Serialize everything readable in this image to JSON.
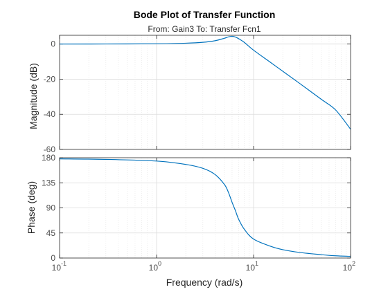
{
  "chart_data": {
    "type": "line",
    "title": "Bode Plot of Transfer Function",
    "subtitle": "From: Gain3  To: Transfer Fcn1",
    "xlabel": "Frequency  (rad/s)",
    "xscale": "log",
    "xlim": [
      0.1,
      100
    ],
    "x_ticks": [
      {
        "base": "10",
        "exp": "-1"
      },
      {
        "base": "10",
        "exp": "0"
      },
      {
        "base": "10",
        "exp": "1"
      },
      {
        "base": "10",
        "exp": "2"
      }
    ],
    "grid": true,
    "series_color": "#0072BD",
    "panels": [
      {
        "name": "magnitude",
        "ylabel": "Magnitude (dB)",
        "ylim": [
          -60,
          5
        ],
        "y_ticks": [
          0,
          -20,
          -40,
          -60
        ],
        "x": [
          0.1,
          0.3,
          1,
          2,
          3,
          4,
          5,
          5.5,
          6,
          6.5,
          7,
          8,
          10,
          15,
          20,
          30,
          50,
          70,
          100
        ],
        "y": [
          0,
          0.05,
          0.15,
          0.5,
          1.0,
          1.9,
          3.3,
          4.1,
          4.4,
          4.0,
          3.1,
          1.0,
          -3.5,
          -10.5,
          -15.5,
          -22.5,
          -31.5,
          -37.5,
          -48.5
        ]
      },
      {
        "name": "phase",
        "ylabel": "Phase (deg)",
        "ylim": [
          0,
          180
        ],
        "y_ticks": [
          180,
          135,
          90,
          45,
          0
        ],
        "x": [
          0.1,
          0.3,
          1,
          2,
          3,
          4,
          5,
          5.5,
          6,
          6.5,
          7,
          8,
          10,
          15,
          20,
          30,
          50,
          70,
          100
        ],
        "y": [
          178,
          177,
          174,
          168,
          161,
          150,
          132,
          118,
          100,
          85,
          70,
          52,
          34,
          21,
          15,
          10,
          6,
          4,
          3
        ]
      }
    ]
  }
}
